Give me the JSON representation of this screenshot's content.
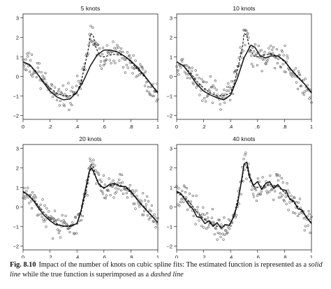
{
  "caption": {
    "label": "Fig. 8.10",
    "part1": "Impact of the number of knots on cubic spline fits: The estimated function is represented as a ",
    "solid": "solid line",
    "part2": " while the true function is superimposed as a ",
    "dashed": "dashed line"
  },
  "chart_data": [
    {
      "type": "line",
      "title": "5 knots",
      "xlim": [
        0,
        1
      ],
      "ylim": [
        -2.2,
        3.2
      ],
      "xticks": [
        "0",
        ".2",
        ".4",
        ".6",
        ".8",
        "1"
      ],
      "yticks": [
        "−2",
        "−1",
        "0",
        "1",
        "2",
        "3"
      ],
      "series": [
        {
          "style": "dashed",
          "x": [
            0,
            0.05,
            0.1,
            0.15,
            0.2,
            0.25,
            0.3,
            0.35,
            0.4,
            0.43,
            0.46,
            0.49,
            0.5,
            0.52,
            0.54,
            0.57,
            0.6,
            0.65,
            0.7,
            0.75,
            0.8,
            0.85,
            0.9,
            0.95,
            1
          ],
          "y": [
            0.75,
            0.55,
            0.2,
            -0.25,
            -0.6,
            -0.85,
            -1.0,
            -1.0,
            -0.85,
            -0.3,
            0.6,
            1.6,
            2.2,
            2.1,
            1.5,
            1.05,
            1.0,
            1.1,
            1.15,
            1.05,
            0.75,
            0.35,
            0.0,
            -0.4,
            -0.8
          ]
        },
        {
          "style": "solid",
          "x": [
            0,
            0.05,
            0.1,
            0.15,
            0.2,
            0.25,
            0.3,
            0.35,
            0.4,
            0.45,
            0.5,
            0.55,
            0.6,
            0.65,
            0.7,
            0.75,
            0.8,
            0.85,
            0.9,
            0.95,
            1
          ],
          "y": [
            0.75,
            0.6,
            0.2,
            -0.3,
            -0.75,
            -1.05,
            -1.2,
            -1.15,
            -0.8,
            -0.2,
            0.55,
            1.1,
            1.35,
            1.35,
            1.25,
            1.05,
            0.8,
            0.45,
            0.05,
            -0.4,
            -0.85
          ]
        }
      ]
    },
    {
      "type": "line",
      "title": "10 knots",
      "xlim": [
        0,
        1
      ],
      "ylim": [
        -2.2,
        3.2
      ],
      "xticks": [
        "0",
        ".2",
        ".4",
        ".6",
        ".8",
        "1"
      ],
      "yticks": [
        "−2",
        "−1",
        "0",
        "1",
        "2",
        "3"
      ],
      "series": [
        {
          "style": "dashed",
          "x": [
            0,
            0.05,
            0.1,
            0.15,
            0.2,
            0.25,
            0.3,
            0.35,
            0.4,
            0.43,
            0.46,
            0.49,
            0.5,
            0.52,
            0.54,
            0.57,
            0.6,
            0.65,
            0.7,
            0.75,
            0.8,
            0.85,
            0.9,
            0.95,
            1
          ],
          "y": [
            0.75,
            0.55,
            0.2,
            -0.25,
            -0.6,
            -0.85,
            -1.0,
            -1.0,
            -0.85,
            -0.3,
            0.6,
            1.6,
            2.2,
            2.1,
            1.5,
            1.05,
            1.0,
            1.1,
            1.15,
            1.05,
            0.75,
            0.35,
            0.0,
            -0.4,
            -0.8
          ]
        },
        {
          "style": "solid",
          "x": [
            0,
            0.05,
            0.1,
            0.15,
            0.2,
            0.25,
            0.3,
            0.35,
            0.4,
            0.45,
            0.5,
            0.55,
            0.58,
            0.62,
            0.66,
            0.7,
            0.75,
            0.8,
            0.85,
            0.9,
            0.95,
            1
          ],
          "y": [
            0.75,
            0.55,
            0.1,
            -0.4,
            -0.75,
            -0.95,
            -1.1,
            -1.2,
            -0.95,
            -0.1,
            0.95,
            1.6,
            1.5,
            1.05,
            0.95,
            1.05,
            1.05,
            0.8,
            0.35,
            -0.05,
            -0.4,
            -0.85
          ]
        }
      ]
    },
    {
      "type": "line",
      "title": "20 knots",
      "xlim": [
        0,
        1
      ],
      "ylim": [
        -2.2,
        3.2
      ],
      "xticks": [
        "0",
        ".2",
        ".4",
        ".6",
        ".8",
        "1"
      ],
      "yticks": [
        "−2",
        "−1",
        "0",
        "1",
        "2",
        "3"
      ],
      "series": [
        {
          "style": "dashed",
          "x": [
            0,
            0.05,
            0.1,
            0.15,
            0.2,
            0.25,
            0.3,
            0.35,
            0.4,
            0.43,
            0.46,
            0.49,
            0.5,
            0.52,
            0.54,
            0.57,
            0.6,
            0.65,
            0.7,
            0.75,
            0.8,
            0.85,
            0.9,
            0.95,
            1
          ],
          "y": [
            0.75,
            0.55,
            0.2,
            -0.25,
            -0.6,
            -0.85,
            -1.0,
            -1.0,
            -0.85,
            -0.3,
            0.6,
            1.6,
            2.2,
            2.1,
            1.5,
            1.05,
            1.0,
            1.1,
            1.15,
            1.05,
            0.75,
            0.35,
            0.0,
            -0.4,
            -0.8
          ]
        },
        {
          "style": "solid",
          "x": [
            0,
            0.04,
            0.08,
            0.12,
            0.16,
            0.2,
            0.24,
            0.28,
            0.32,
            0.36,
            0.4,
            0.43,
            0.46,
            0.49,
            0.51,
            0.53,
            0.56,
            0.6,
            0.64,
            0.68,
            0.72,
            0.76,
            0.8,
            0.84,
            0.88,
            0.92,
            0.96,
            1
          ],
          "y": [
            0.8,
            0.6,
            0.3,
            -0.1,
            -0.45,
            -0.7,
            -0.9,
            -0.95,
            -1.0,
            -0.95,
            -0.85,
            -0.2,
            0.8,
            1.8,
            2.0,
            1.7,
            1.2,
            0.95,
            1.15,
            1.2,
            1.05,
            1.05,
            0.8,
            0.45,
            0.1,
            -0.2,
            -0.5,
            -0.8
          ]
        }
      ]
    },
    {
      "type": "line",
      "title": "40 knots",
      "xlim": [
        0,
        1
      ],
      "ylim": [
        -2.2,
        3.2
      ],
      "xticks": [
        "0",
        ".2",
        ".4",
        ".6",
        ".8",
        "1"
      ],
      "yticks": [
        "−2",
        "−1",
        "0",
        "1",
        "2",
        "3"
      ],
      "series": [
        {
          "style": "dashed",
          "x": [
            0,
            0.05,
            0.1,
            0.15,
            0.2,
            0.25,
            0.3,
            0.35,
            0.4,
            0.43,
            0.46,
            0.49,
            0.5,
            0.52,
            0.54,
            0.57,
            0.6,
            0.65,
            0.7,
            0.75,
            0.8,
            0.85,
            0.9,
            0.95,
            1
          ],
          "y": [
            0.75,
            0.55,
            0.2,
            -0.25,
            -0.6,
            -0.85,
            -1.0,
            -1.0,
            -0.85,
            -0.3,
            0.6,
            1.6,
            2.2,
            2.1,
            1.5,
            1.05,
            1.0,
            1.1,
            1.15,
            1.05,
            0.75,
            0.35,
            0.0,
            -0.4,
            -0.8
          ]
        },
        {
          "style": "solid",
          "x": [
            0,
            0.03,
            0.06,
            0.09,
            0.12,
            0.15,
            0.18,
            0.21,
            0.24,
            0.27,
            0.3,
            0.33,
            0.36,
            0.39,
            0.42,
            0.45,
            0.48,
            0.5,
            0.52,
            0.54,
            0.57,
            0.6,
            0.63,
            0.66,
            0.69,
            0.72,
            0.75,
            0.78,
            0.81,
            0.84,
            0.87,
            0.9,
            0.93,
            0.96,
            1
          ],
          "y": [
            0.8,
            0.7,
            0.4,
            0.1,
            -0.1,
            -0.5,
            -0.55,
            -0.85,
            -0.7,
            -1.0,
            -0.8,
            -1.1,
            -0.9,
            -0.95,
            -0.55,
            0.1,
            1.3,
            2.2,
            2.3,
            1.6,
            1.1,
            1.3,
            0.9,
            1.2,
            1.3,
            0.95,
            1.15,
            0.9,
            0.85,
            0.4,
            0.3,
            -0.1,
            -0.15,
            -0.5,
            -0.85
          ]
        }
      ]
    }
  ]
}
